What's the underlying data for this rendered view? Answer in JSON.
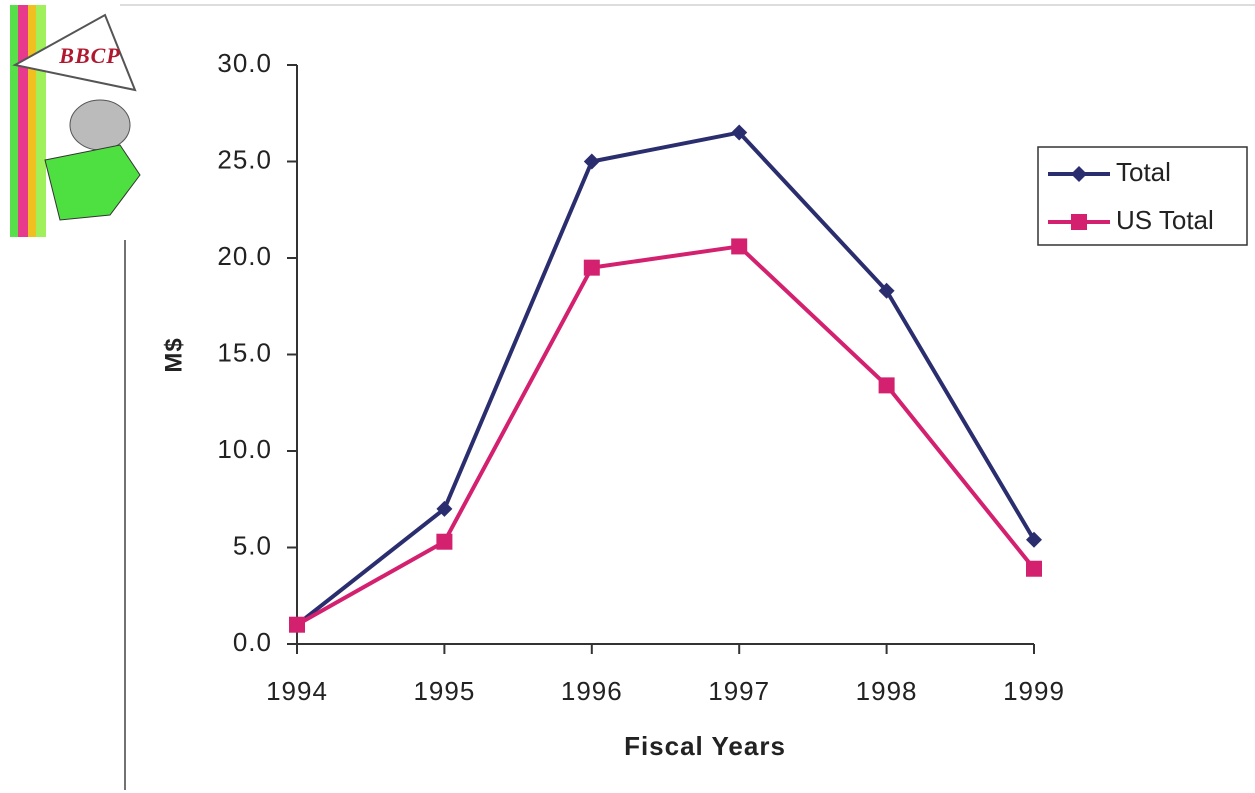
{
  "logo_text": "BBCP",
  "chart_data": {
    "type": "line",
    "y_label": "M$",
    "x_label": "Fiscal Years",
    "categories": [
      "1994",
      "1995",
      "1996",
      "1997",
      "1998",
      "1999"
    ],
    "series": [
      {
        "name": "Total",
        "color": "#2b2e6e",
        "marker": "diamond",
        "values": [
          1.0,
          7.0,
          25.0,
          26.5,
          18.3,
          5.4
        ]
      },
      {
        "name": "US Total",
        "color": "#d3206f",
        "marker": "square",
        "values": [
          1.0,
          5.3,
          19.5,
          20.6,
          13.4,
          3.9
        ]
      }
    ],
    "ylim": [
      0,
      30
    ],
    "yticks": [
      {
        "value": 0,
        "label": "0.0"
      },
      {
        "value": 5,
        "label": "5.0"
      },
      {
        "value": 10,
        "label": "10.0"
      },
      {
        "value": 15,
        "label": "15.0"
      },
      {
        "value": 20,
        "label": "20.0"
      },
      {
        "value": 25,
        "label": "25.0"
      },
      {
        "value": 30,
        "label": "30.0"
      }
    ],
    "grid": false,
    "legend": "right"
  }
}
